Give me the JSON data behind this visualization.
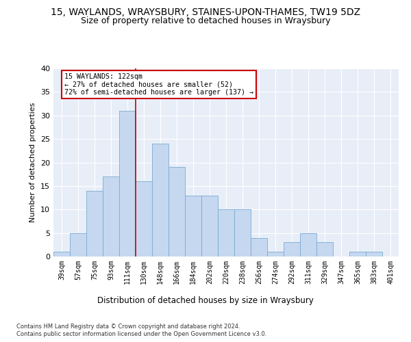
{
  "title": "15, WAYLANDS, WRAYSBURY, STAINES-UPON-THAMES, TW19 5DZ",
  "subtitle": "Size of property relative to detached houses in Wraysbury",
  "xlabel": "Distribution of detached houses by size in Wraysbury",
  "ylabel": "Number of detached properties",
  "categories": [
    "39sqm",
    "57sqm",
    "75sqm",
    "93sqm",
    "111sqm",
    "130sqm",
    "148sqm",
    "166sqm",
    "184sqm",
    "202sqm",
    "220sqm",
    "238sqm",
    "256sqm",
    "274sqm",
    "292sqm",
    "311sqm",
    "329sqm",
    "347sqm",
    "365sqm",
    "383sqm",
    "401sqm"
  ],
  "values": [
    1,
    5,
    14,
    17,
    31,
    16,
    24,
    19,
    13,
    13,
    10,
    10,
    4,
    1,
    3,
    5,
    3,
    0,
    1,
    1,
    0
  ],
  "bar_color": "#c5d8f0",
  "bar_edge_color": "#7aaacf",
  "vline_color": "#cc0000",
  "vline_bin_index": 4,
  "ylim": [
    0,
    40
  ],
  "yticks": [
    0,
    5,
    10,
    15,
    20,
    25,
    30,
    35,
    40
  ],
  "annotation_line1": "15 WAYLANDS: 122sqm",
  "annotation_line2": "← 27% of detached houses are smaller (52)",
  "annotation_line3": "72% of semi-detached houses are larger (137) →",
  "annotation_box_color": "#ffffff",
  "annotation_box_edgecolor": "#cc0000",
  "footer1": "Contains HM Land Registry data © Crown copyright and database right 2024.",
  "footer2": "Contains public sector information licensed under the Open Government Licence v3.0.",
  "bg_color": "#e8eef8",
  "grid_color": "#ffffff"
}
